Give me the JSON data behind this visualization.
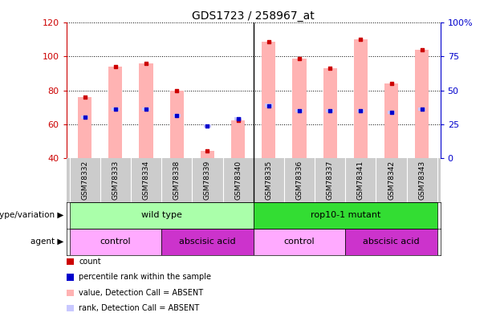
{
  "title": "GDS1723 / 258967_at",
  "samples": [
    "GSM78332",
    "GSM78333",
    "GSM78334",
    "GSM78338",
    "GSM78339",
    "GSM78340",
    "GSM78335",
    "GSM78336",
    "GSM78337",
    "GSM78341",
    "GSM78342",
    "GSM78343"
  ],
  "count_values": [
    76,
    94,
    96,
    80,
    44,
    62,
    109,
    99,
    93,
    110,
    84,
    104
  ],
  "percentile_values": [
    64,
    69,
    69,
    65,
    59,
    63,
    71,
    68,
    68,
    68,
    67,
    69
  ],
  "ylim_left": [
    40,
    120
  ],
  "ylim_right": [
    0,
    100
  ],
  "yticks_left": [
    40,
    60,
    80,
    100,
    120
  ],
  "yticks_right": [
    0,
    25,
    50,
    75,
    100
  ],
  "yticklabels_right": [
    "0",
    "25",
    "50",
    "75",
    "100%"
  ],
  "bar_color_absent": "#ffb3b3",
  "bar_color_rank_absent": "#c8c8ff",
  "dot_color_count": "#cc0000",
  "dot_color_percentile": "#0000cc",
  "genotype_groups": [
    {
      "label": "wild type",
      "start": 0,
      "end": 6,
      "color": "#aaffaa"
    },
    {
      "label": "rop10-1 mutant",
      "start": 6,
      "end": 12,
      "color": "#33dd33"
    }
  ],
  "agent_groups": [
    {
      "label": "control",
      "start": 0,
      "end": 3,
      "color": "#ffaaff"
    },
    {
      "label": "abscisic acid",
      "start": 3,
      "end": 6,
      "color": "#cc33cc"
    },
    {
      "label": "control",
      "start": 6,
      "end": 9,
      "color": "#ffaaff"
    },
    {
      "label": "abscisic acid",
      "start": 9,
      "end": 12,
      "color": "#cc33cc"
    }
  ],
  "legend_items": [
    {
      "label": "count",
      "color": "#cc0000"
    },
    {
      "label": "percentile rank within the sample",
      "color": "#0000cc"
    },
    {
      "label": "value, Detection Call = ABSENT",
      "color": "#ffb3b3"
    },
    {
      "label": "rank, Detection Call = ABSENT",
      "color": "#c8c8ff"
    }
  ],
  "left_axis_color": "#cc0000",
  "right_axis_color": "#0000cc",
  "genotype_label": "genotype/variation",
  "agent_label": "agent",
  "separator_col": 5,
  "sample_bg_color": "#cccccc",
  "sample_divider_color": "#ffffff"
}
